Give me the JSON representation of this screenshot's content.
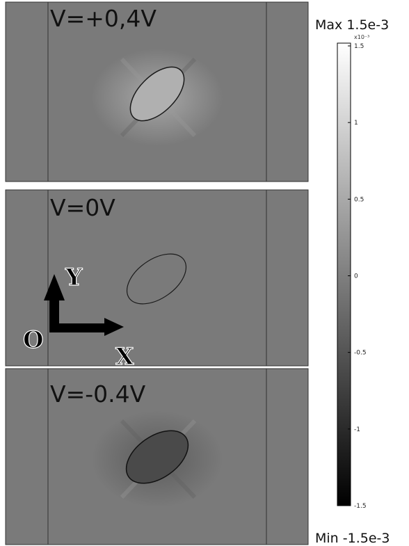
{
  "panels": [
    {
      "label": "V=+0,4V"
    },
    {
      "label": "V=0V"
    },
    {
      "label": "V=-0.4V"
    }
  ],
  "axes": {
    "y": "Y",
    "x": "X",
    "origin": "O"
  },
  "colorbar": {
    "max_label": "Max 1.5e-3",
    "min_label": "Min -1.5e-3",
    "exponent": "x10⁻³",
    "ticks": [
      "1.5",
      "1",
      "0.5",
      "0",
      "-0.5",
      "-1",
      "-1.5"
    ]
  }
}
